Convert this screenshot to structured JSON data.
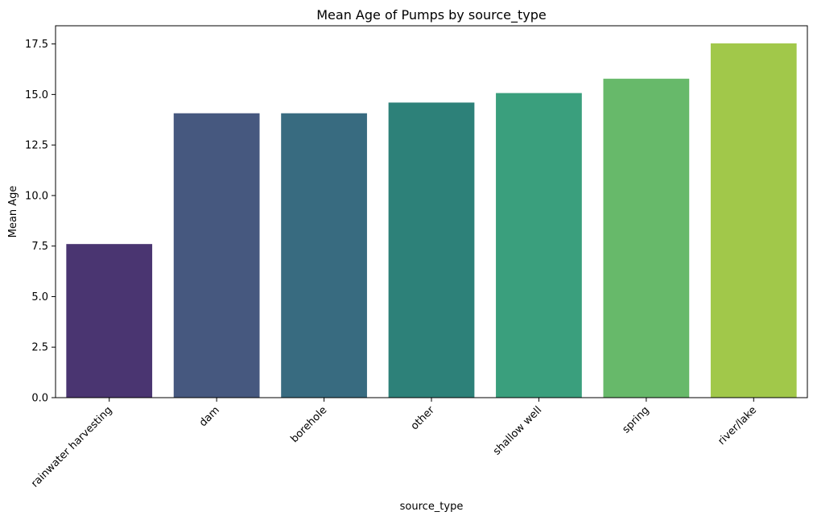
{
  "chart_data": {
    "type": "bar",
    "title": "Mean Age of Pumps by source_type",
    "xlabel": "source_type",
    "ylabel": "Mean Age",
    "categories": [
      "rainwater harvesting",
      "dam",
      "borehole",
      "other",
      "shallow well",
      "spring",
      "river/lake"
    ],
    "values": [
      7.6,
      14.07,
      14.07,
      14.6,
      15.07,
      15.78,
      17.53
    ],
    "colors": [
      "#4a3571",
      "#46587f",
      "#386b80",
      "#2d8179",
      "#3a9f7d",
      "#67b96a",
      "#a1c84a"
    ],
    "ylim": [
      0,
      18.4
    ],
    "yticks": [
      0.0,
      2.5,
      5.0,
      7.5,
      10.0,
      12.5,
      15.0,
      17.5
    ],
    "ytick_labels": [
      "0.0",
      "2.5",
      "5.0",
      "7.5",
      "10.0",
      "12.5",
      "15.0",
      "17.5"
    ],
    "grid": false,
    "legend": "none"
  }
}
